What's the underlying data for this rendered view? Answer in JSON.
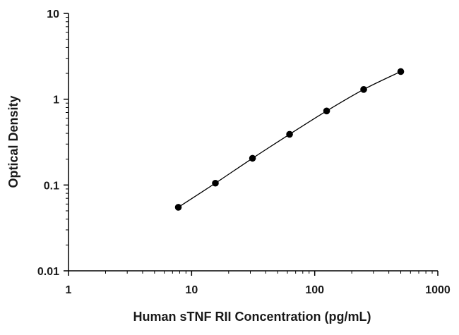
{
  "chart_data": {
    "type": "scatter",
    "title": "",
    "xlabel": "Human sTNF RII Concentration (pg/mL)",
    "ylabel": "Optical Density",
    "x_scale": "log",
    "y_scale": "log",
    "xlim": [
      1,
      1000
    ],
    "ylim": [
      0.01,
      10
    ],
    "x_ticks": [
      "1",
      "10",
      "100",
      "1000"
    ],
    "y_ticks": [
      "0.01",
      "0.1",
      "1",
      "10"
    ],
    "grid": false,
    "legend": "none",
    "marker_color": "#000000",
    "line_color": "#000000",
    "series": [
      {
        "x": [
          7.8,
          15.6,
          31.25,
          62.5,
          125,
          250,
          500
        ],
        "y": [
          0.055,
          0.105,
          0.205,
          0.39,
          0.73,
          1.3,
          2.1
        ]
      }
    ]
  }
}
